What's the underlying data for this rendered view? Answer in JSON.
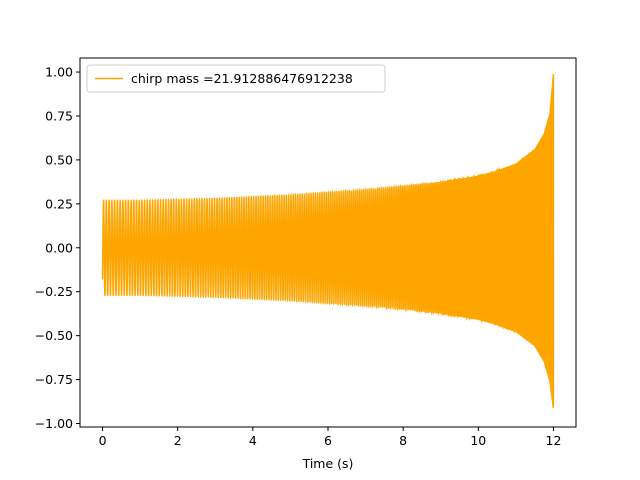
{
  "chart_data": {
    "type": "line",
    "title": "",
    "xlabel": "Time (s)",
    "ylabel": "",
    "xlim": [
      -0.6,
      12.6
    ],
    "ylim": [
      -1.02,
      1.08
    ],
    "xticks": [
      0,
      2,
      4,
      6,
      8,
      10,
      12
    ],
    "xtick_labels": [
      "0",
      "2",
      "4",
      "6",
      "8",
      "10",
      "12"
    ],
    "yticks": [
      -1.0,
      -0.75,
      -0.5,
      -0.25,
      0.0,
      0.25,
      0.5,
      0.75,
      1.0
    ],
    "ytick_labels": [
      "−1.00",
      "−0.75",
      "−0.50",
      "−0.25",
      "0.00",
      "0.25",
      "0.50",
      "0.75",
      "1.00"
    ],
    "grid": false,
    "legend_position": "upper-left",
    "series": [
      {
        "name": "chirp mass =21.912886476912238",
        "color": "#ffa500",
        "t_start": 0.0,
        "t_merge": 12.0,
        "envelope_t": [
          0.0,
          1,
          2,
          3,
          4,
          5,
          6,
          7,
          8,
          9,
          10,
          10.5,
          11.0,
          11.5,
          11.75,
          11.9,
          12.0
        ],
        "envelope_upper": [
          0.27,
          0.27,
          0.275,
          0.28,
          0.29,
          0.3,
          0.315,
          0.33,
          0.35,
          0.375,
          0.41,
          0.44,
          0.48,
          0.56,
          0.65,
          0.76,
          1.0
        ],
        "envelope_lower": [
          -0.27,
          -0.27,
          -0.275,
          -0.28,
          -0.29,
          -0.3,
          -0.315,
          -0.33,
          -0.35,
          -0.375,
          -0.41,
          -0.44,
          -0.48,
          -0.56,
          -0.65,
          -0.76,
          -0.92
        ],
        "initial_value": -0.18
      }
    ]
  }
}
